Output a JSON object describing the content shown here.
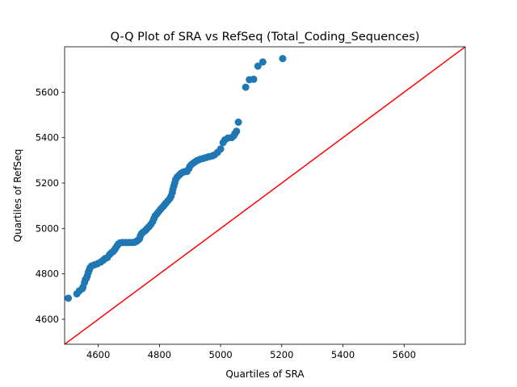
{
  "chart_data": {
    "type": "scatter",
    "title": "Q-Q Plot of SRA vs RefSeq (Total_Coding_Sequences)",
    "xlabel": "Quartiles of SRA",
    "ylabel": "Quartiles of RefSeq",
    "xlim": [
      4490,
      5800
    ],
    "ylim": [
      4490,
      5800
    ],
    "xticks": [
      4600,
      4800,
      5000,
      5200,
      5400,
      5600
    ],
    "yticks": [
      4600,
      4800,
      5000,
      5200,
      5400,
      5600
    ],
    "grid": false,
    "colors": {
      "points": "#1f77b4",
      "reference_line": "#ff0000"
    },
    "reference_line": {
      "x": [
        4490,
        5800
      ],
      "y": [
        4490,
        5800
      ]
    },
    "points": [
      [
        4502,
        4693
      ],
      [
        4530,
        4712
      ],
      [
        4538,
        4725
      ],
      [
        4548,
        4735
      ],
      [
        4550,
        4742
      ],
      [
        4555,
        4762
      ],
      [
        4558,
        4775
      ],
      [
        4561,
        4780
      ],
      [
        4564,
        4790
      ],
      [
        4567,
        4805
      ],
      [
        4570,
        4815
      ],
      [
        4573,
        4826
      ],
      [
        4578,
        4835
      ],
      [
        4588,
        4840
      ],
      [
        4598,
        4845
      ],
      [
        4608,
        4852
      ],
      [
        4616,
        4860
      ],
      [
        4622,
        4867
      ],
      [
        4630,
        4872
      ],
      [
        4637,
        4885
      ],
      [
        4643,
        4893
      ],
      [
        4649,
        4899
      ],
      [
        4654,
        4907
      ],
      [
        4658,
        4916
      ],
      [
        4662,
        4924
      ],
      [
        4666,
        4932
      ],
      [
        4672,
        4937
      ],
      [
        4680,
        4938
      ],
      [
        4690,
        4938
      ],
      [
        4700,
        4938
      ],
      [
        4710,
        4938
      ],
      [
        4718,
        4939
      ],
      [
        4724,
        4943
      ],
      [
        4730,
        4948
      ],
      [
        4735,
        4955
      ],
      [
        4738,
        4968
      ],
      [
        4742,
        4978
      ],
      [
        4748,
        4985
      ],
      [
        4755,
        4992
      ],
      [
        4760,
        5000
      ],
      [
        4766,
        5008
      ],
      [
        4772,
        5018
      ],
      [
        4778,
        5030
      ],
      [
        4782,
        5043
      ],
      [
        4786,
        5055
      ],
      [
        4792,
        5065
      ],
      [
        4798,
        5075
      ],
      [
        4804,
        5085
      ],
      [
        4811,
        5095
      ],
      [
        4817,
        5105
      ],
      [
        4822,
        5113
      ],
      [
        4828,
        5122
      ],
      [
        4834,
        5132
      ],
      [
        4838,
        5142
      ],
      [
        4842,
        5158
      ],
      [
        4844,
        5172
      ],
      [
        4847,
        5186
      ],
      [
        4850,
        5200
      ],
      [
        4853,
        5215
      ],
      [
        4858,
        5226
      ],
      [
        4864,
        5234
      ],
      [
        4870,
        5242
      ],
      [
        4876,
        5247
      ],
      [
        4882,
        5250
      ],
      [
        4890,
        5251
      ],
      [
        4896,
        5263
      ],
      [
        4900,
        5275
      ],
      [
        4906,
        5283
      ],
      [
        4914,
        5291
      ],
      [
        4922,
        5298
      ],
      [
        4932,
        5304
      ],
      [
        4942,
        5308
      ],
      [
        4952,
        5312
      ],
      [
        4962,
        5316
      ],
      [
        4972,
        5319
      ],
      [
        4980,
        5324
      ],
      [
        4990,
        5335
      ],
      [
        5000,
        5350
      ],
      [
        5008,
        5378
      ],
      [
        5014,
        5390
      ],
      [
        5024,
        5398
      ],
      [
        5036,
        5400
      ],
      [
        5043,
        5408
      ],
      [
        5047,
        5418
      ],
      [
        5052,
        5428
      ],
      [
        5058,
        5468
      ],
      [
        5082,
        5622
      ],
      [
        5094,
        5655
      ],
      [
        5108,
        5657
      ],
      [
        5122,
        5715
      ],
      [
        5138,
        5733
      ],
      [
        5203,
        5748
      ]
    ]
  }
}
